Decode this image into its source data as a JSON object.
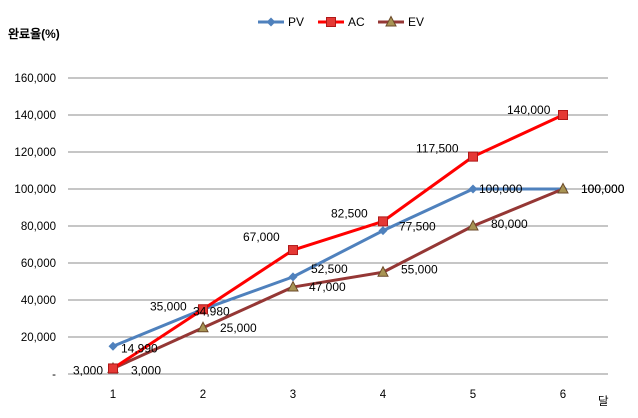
{
  "chart_data": {
    "type": "line",
    "ylabel": "완료율(%)",
    "xlabel": "달",
    "categories": [
      "1",
      "2",
      "3",
      "4",
      "5",
      "6"
    ],
    "ylim": [
      0,
      160000
    ],
    "yticks": [
      "-",
      "20,000",
      "40,000",
      "60,000",
      "80,000",
      "100,000",
      "120,000",
      "140,000",
      "160,000"
    ],
    "grid": true,
    "legend": "top-center",
    "series": [
      {
        "name": "PV",
        "color": "#4f81bd",
        "marker": "diamond",
        "values": [
          14990,
          34980,
          52500,
          77500,
          100000,
          100000
        ],
        "labels": [
          "14,990",
          "34,980",
          "52,500",
          "77,500",
          "100,000",
          "100,000"
        ]
      },
      {
        "name": "AC",
        "color": "#ff0000",
        "marker": "square",
        "values": [
          3000,
          35000,
          67000,
          82500,
          117500,
          140000
        ],
        "labels": [
          "3,000",
          "35,000",
          "67,000",
          "82,500",
          "117,500",
          "140,000"
        ]
      },
      {
        "name": "EV",
        "color": "#953735",
        "marker": "triangle",
        "values": [
          3000,
          25000,
          47000,
          55000,
          80000,
          100000
        ],
        "labels": [
          "3,000",
          "25,000",
          "47,000",
          "55,000",
          "80,000",
          "100,000"
        ]
      }
    ]
  }
}
